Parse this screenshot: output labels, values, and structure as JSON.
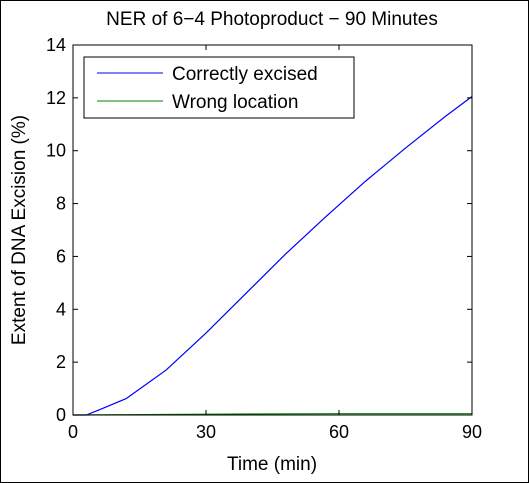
{
  "chart_data": {
    "type": "line",
    "title": "NER of 6−4 Photoproduct − 90 Minutes",
    "xlabel": "Time (min)",
    "ylabel": "Extent of DNA Excision (%)",
    "xlim": [
      0,
      90
    ],
    "ylim": [
      0,
      14
    ],
    "x_ticks": [
      0,
      30,
      60,
      90
    ],
    "y_ticks": [
      0,
      2,
      4,
      6,
      8,
      10,
      12,
      14
    ],
    "x_tick_labels": [
      "0",
      "30",
      "60",
      "90"
    ],
    "y_tick_labels": [
      "0",
      "2",
      "4",
      "6",
      "8",
      "10",
      "12",
      "14"
    ],
    "grid": false,
    "legend_position": "top-left",
    "series": [
      {
        "name": "Correctly excised",
        "color": "#0000ff",
        "x": [
          0,
          3,
          6,
          12,
          21,
          30,
          39,
          48,
          57,
          66,
          75,
          84,
          90
        ],
        "y": [
          0,
          0,
          0.2,
          0.62,
          1.7,
          3.1,
          4.6,
          6.1,
          7.5,
          8.85,
          10.1,
          11.3,
          12.05
        ]
      },
      {
        "name": "Wrong location",
        "color": "#008000",
        "x": [
          0,
          10,
          20,
          30,
          40,
          50,
          60,
          70,
          80,
          90
        ],
        "y": [
          0,
          0.01,
          0.02,
          0.03,
          0.04,
          0.045,
          0.05,
          0.05,
          0.05,
          0.05
        ]
      }
    ]
  }
}
